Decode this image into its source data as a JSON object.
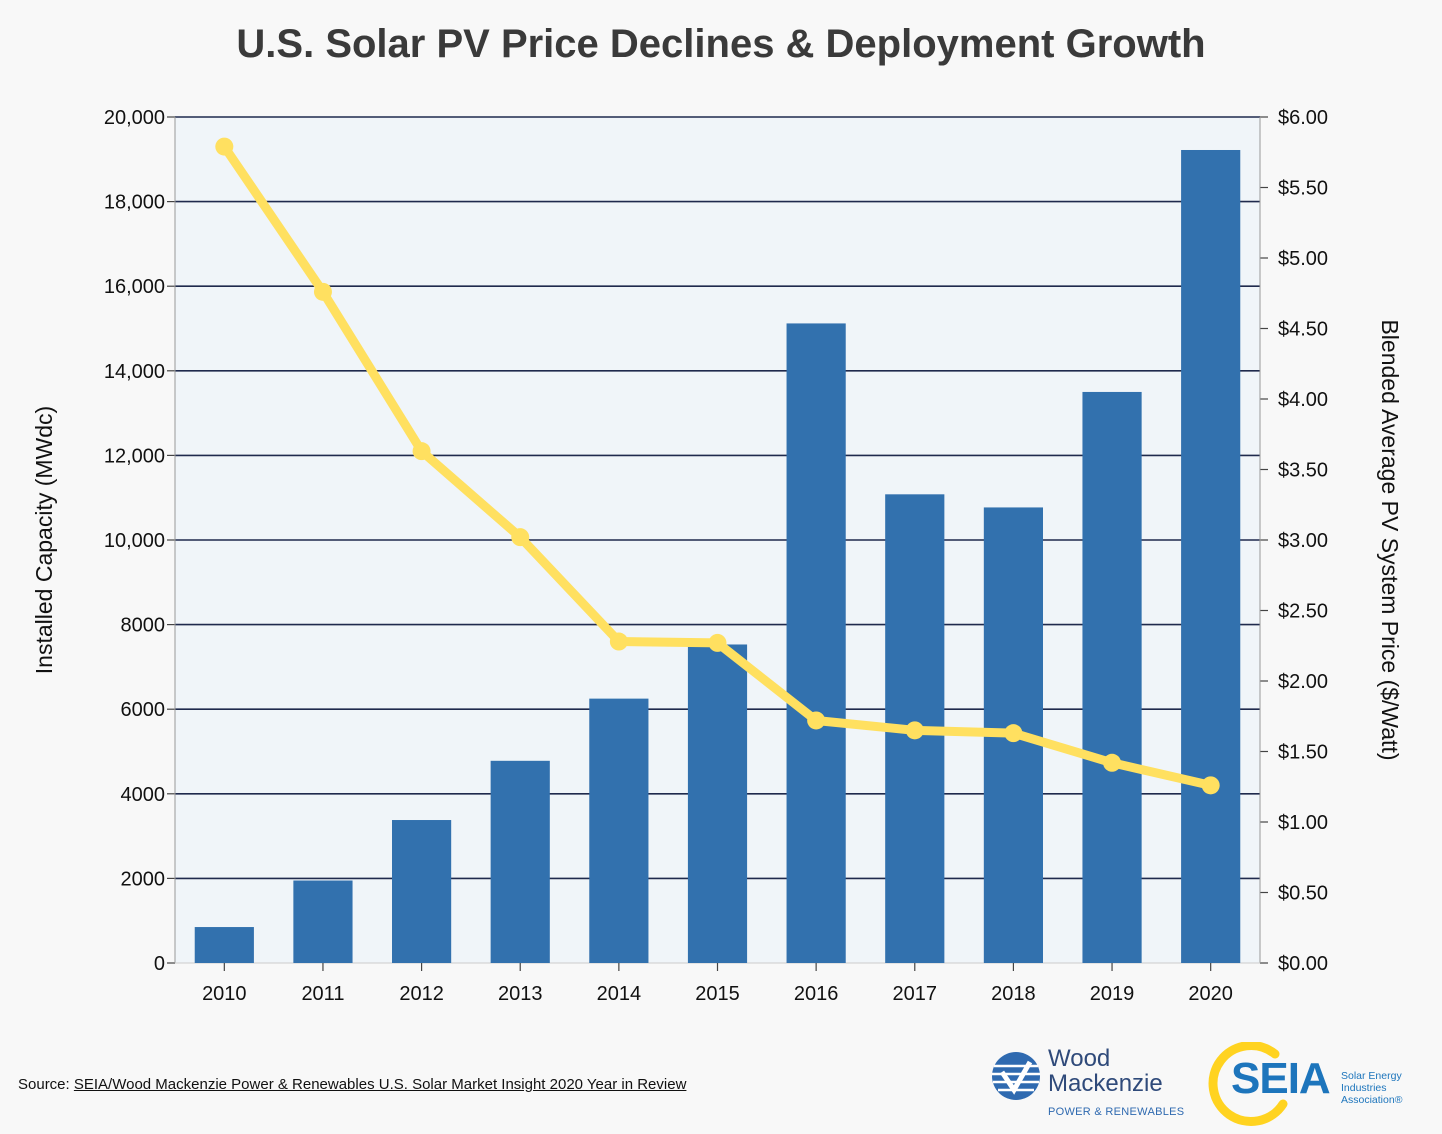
{
  "title": "U.S. Solar PV Price Declines & Deployment Growth",
  "chart_data": {
    "type": "bar+line",
    "categories": [
      "2010",
      "2011",
      "2012",
      "2013",
      "2014",
      "2015",
      "2016",
      "2017",
      "2018",
      "2019",
      "2020"
    ],
    "series": [
      {
        "axis": "left",
        "type": "bar",
        "color": "#3271ae",
        "values": [
          850,
          1950,
          3380,
          4780,
          6250,
          7530,
          15120,
          11080,
          10770,
          13500,
          19220
        ]
      },
      {
        "axis": "right",
        "type": "line",
        "color": "#ffe060",
        "values": [
          5.79,
          4.76,
          3.63,
          3.02,
          2.28,
          2.27,
          1.72,
          1.65,
          1.63,
          1.42,
          1.26
        ]
      }
    ],
    "ylabel": "Installed Capacity (MWdc)",
    "y2label": "Blended Average PV System Price ($/Watt)",
    "ylim": [
      0,
      20000
    ],
    "y2lim": [
      0,
      6
    ],
    "yticks": [
      "0",
      "2000",
      "4000",
      "6000",
      "8000",
      "10,000",
      "12,000",
      "14,000",
      "16,000",
      "18,000",
      "20,000"
    ],
    "y2ticks": [
      "$0.00",
      "$0.50",
      "$1.00",
      "$1.50",
      "$2.00",
      "$2.50",
      "$3.00",
      "$3.50",
      "$4.00",
      "$4.50",
      "$5.00",
      "$5.50",
      "$6.00"
    ],
    "grid": true,
    "plot_background": "#f0f5f9",
    "gridline_color": "#1f2a4d"
  },
  "source": {
    "prefix": "Source: ",
    "link": "SEIA/Wood Mackenzie Power & Renewables U.S. Solar Market Insight 2020 Year in Review"
  },
  "logos": {
    "woodmac_name": "Wood Mackenzie",
    "woodmac_sub": "POWER & RENEWABLES",
    "seia_word": "SEIA",
    "seia_tagline": "Solar Energy Industries Association®"
  }
}
